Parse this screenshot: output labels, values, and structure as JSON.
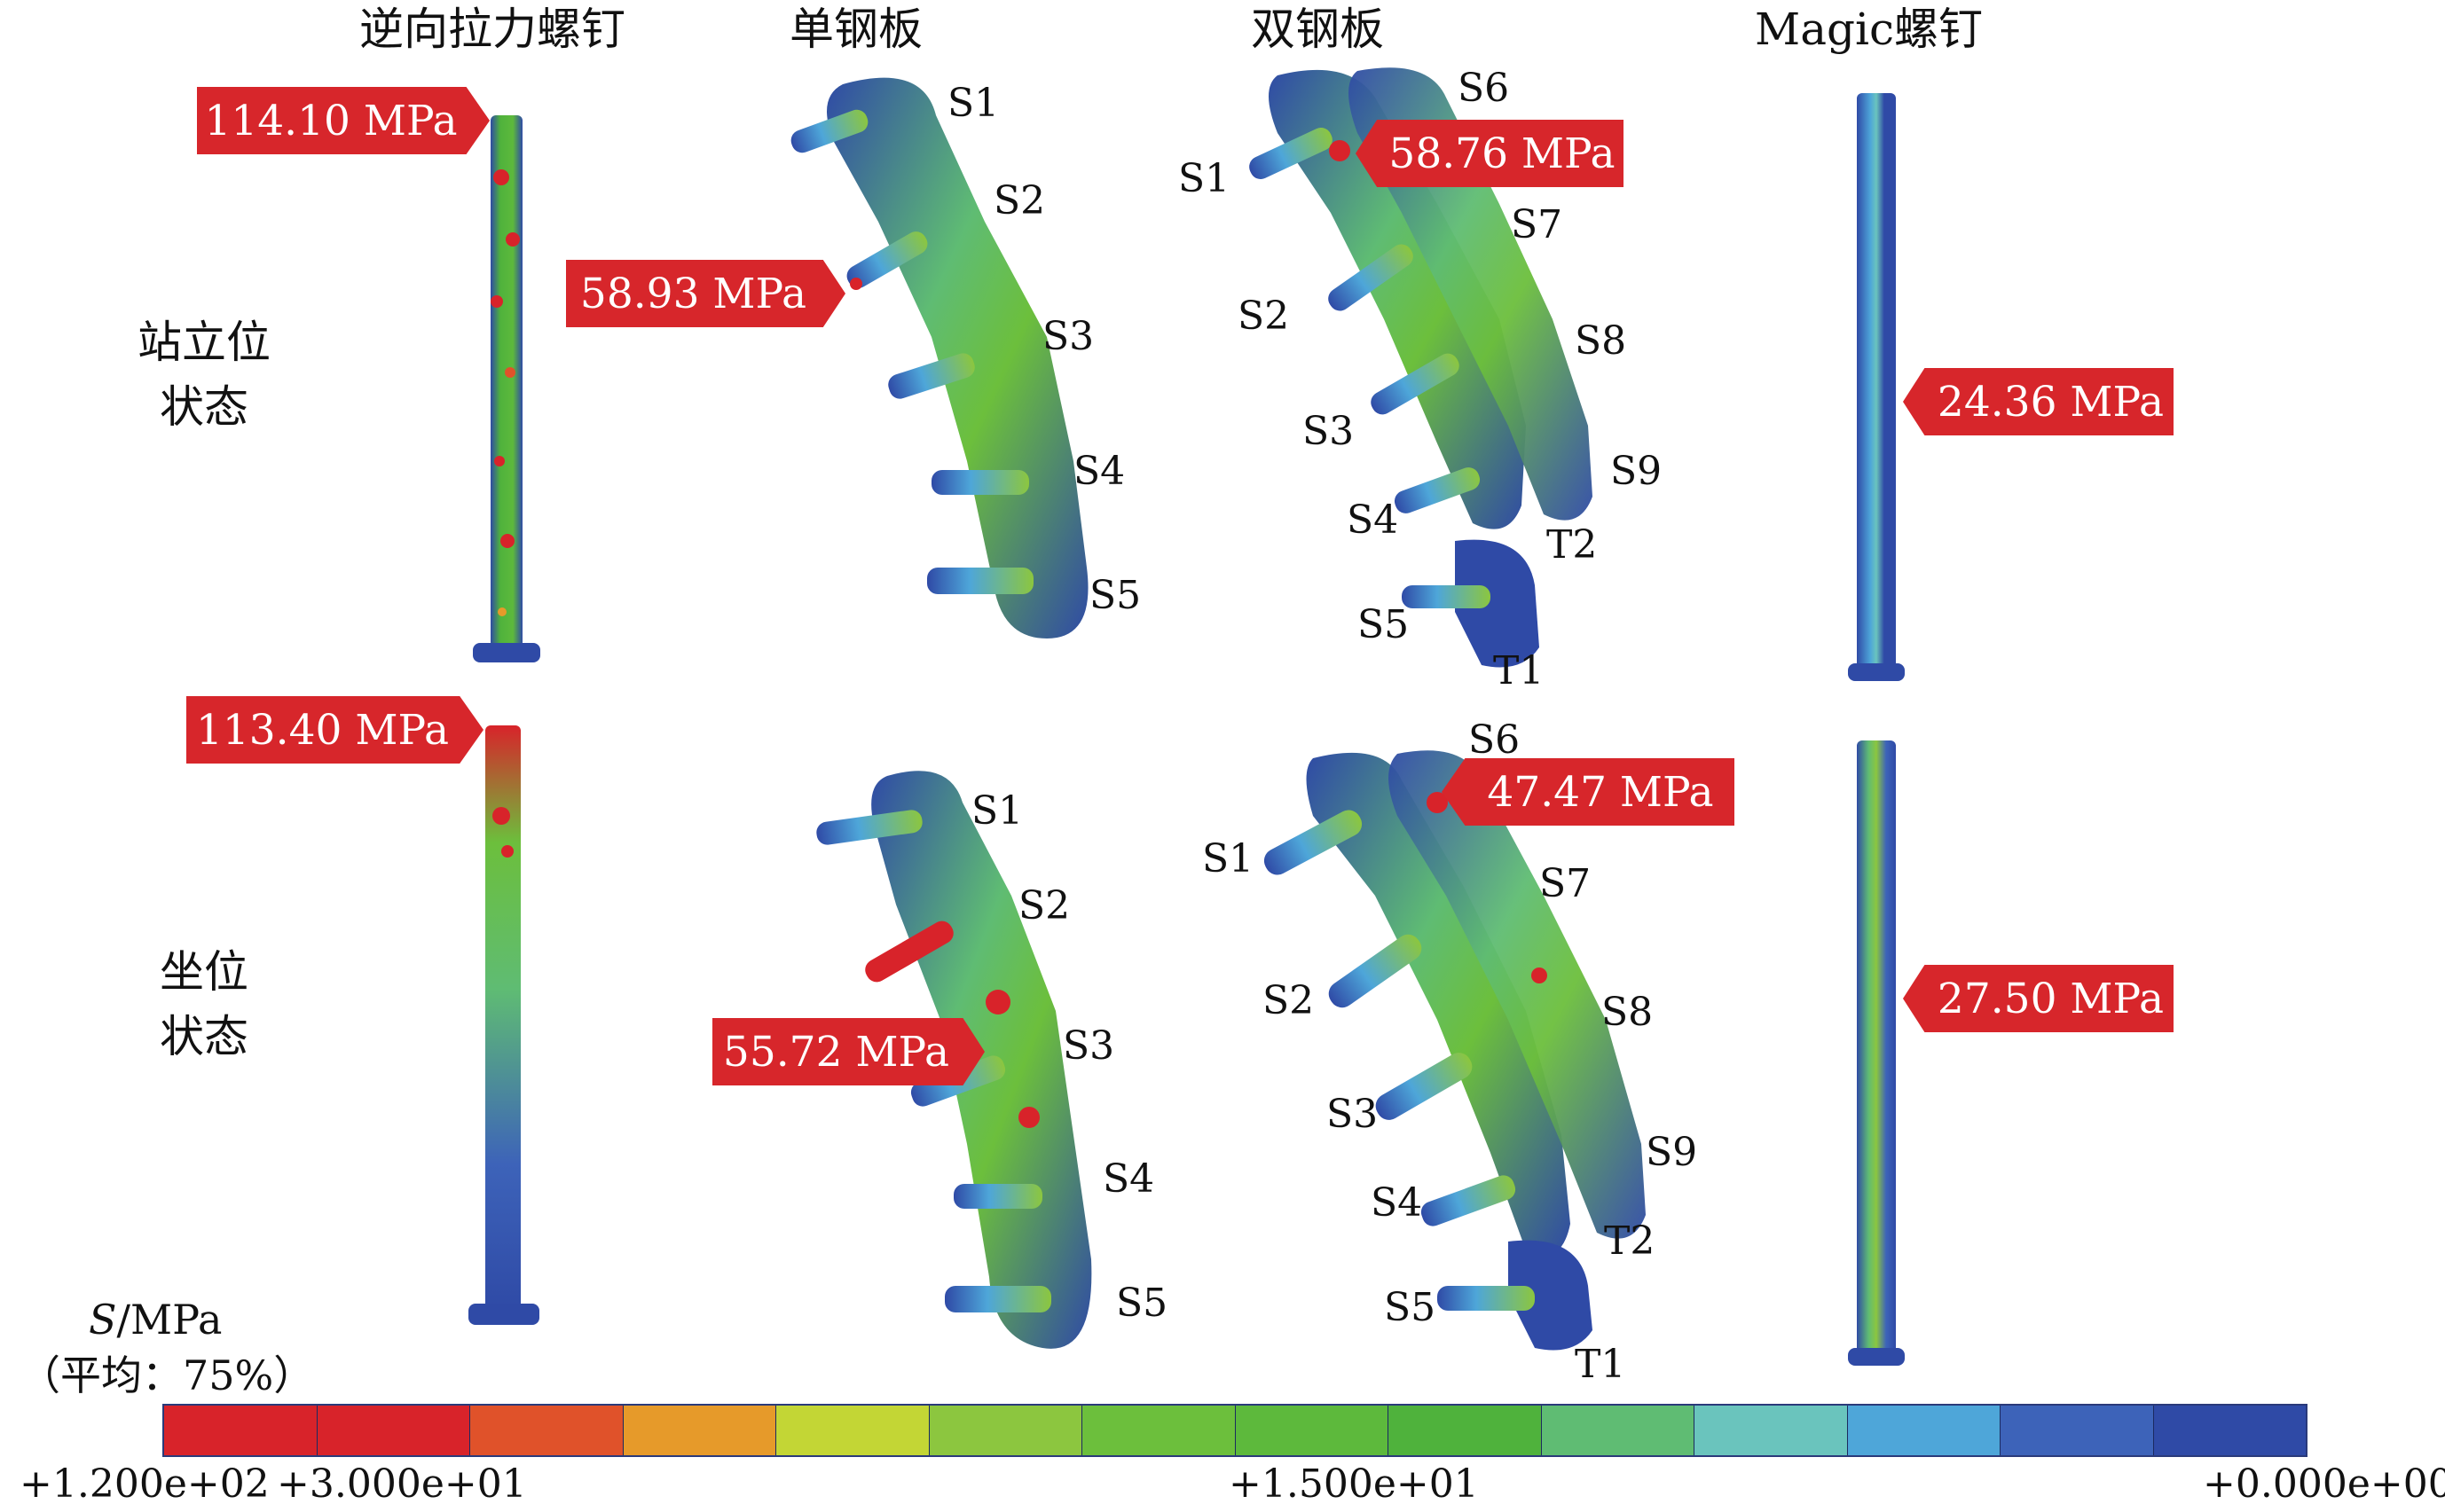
{
  "columns": [
    "逆向拉力螺钉",
    "单钢板",
    "双钢板",
    "Magic螺钉"
  ],
  "rows": [
    {
      "line1": "站立位",
      "line2": "状态"
    },
    {
      "line1": "坐位",
      "line2": "状态"
    }
  ],
  "callouts": {
    "standing_screw": "114.10 MPa",
    "standing_single": "58.93 MPa",
    "standing_double": "58.76 MPa",
    "standing_magic": "24.36 MPa",
    "sitting_screw": "113.40 MPa",
    "sitting_single": "55.72 MPa",
    "sitting_double": "47.47 MPa",
    "sitting_magic": "27.50 MPa"
  },
  "single_plate_labels": [
    "S1",
    "S2",
    "S3",
    "S4",
    "S5"
  ],
  "double_plate_labels": [
    "S1",
    "S2",
    "S3",
    "S4",
    "S5",
    "S6",
    "S7",
    "S8",
    "S9",
    "T1",
    "T2"
  ],
  "legend": {
    "title_var": "S",
    "title_unit": "/MPa",
    "subtitle": "（平均：75%）",
    "ticks": [
      "+1.200e+02",
      "+3.000e+01",
      "+1.500e+01",
      "+0.000e+00"
    ],
    "colors": [
      "#d8232a",
      "#d8232a",
      "#e0522a",
      "#e69a2a",
      "#c3d635",
      "#8cc63f",
      "#6cbf3c",
      "#5db93c",
      "#4fb23c",
      "#5fbc73",
      "#6ac4bd",
      "#4ea6d9",
      "#3d63b9",
      "#2f4aa6"
    ]
  }
}
